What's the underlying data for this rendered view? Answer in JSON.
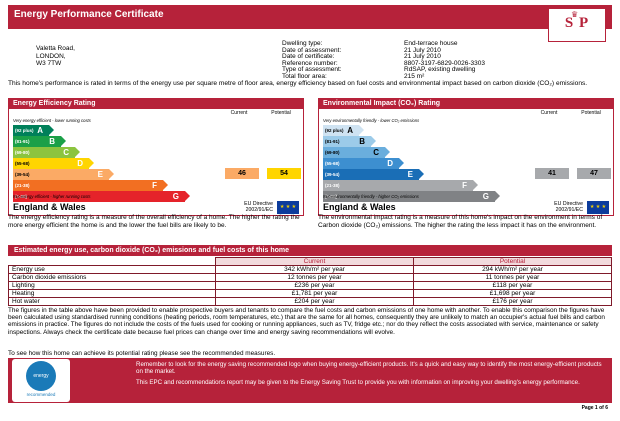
{
  "header": {
    "title": "Energy Performance Certificate",
    "logo_text": "S P"
  },
  "address": {
    "line1": "Valetta Road,",
    "line2": "LONDON,",
    "line3": "W3 7TW"
  },
  "details": [
    {
      "label": "Dwelling type:",
      "value": "End-terrace house"
    },
    {
      "label": "Date of assessment:",
      "value": "21 July 2010"
    },
    {
      "label": "Date of certificate:",
      "value": "21 July 2010"
    },
    {
      "label": "Reference number:",
      "value": "8807-3197-6829-0026-3303"
    },
    {
      "label": "Type of assessment:",
      "value": "RdSAP, existing dwelling"
    },
    {
      "label": "Total floor area:",
      "value": "215 m²"
    }
  ],
  "summary": "This home's performance is rated in terms of the energy use per square metre of floor area, energy efficiency based on fuel costs and environmental impact based on carbon dioxide (CO₂) emissions.",
  "efficiency": {
    "title": "Energy Efficiency Rating",
    "col_current": "Current",
    "col_potential": "Potential",
    "top_caption": "Very energy efficient - lower running costs",
    "bottom_caption": "Not energy efficient - higher running costs",
    "current": "46",
    "potential": "54",
    "region": "England & Wales",
    "eu_directive": "EU Directive\n2002/91/EC",
    "description": "The energy efficiency rating is a measure of the overall efficiency of a home. The higher the rating the more energy efficient the home is and the lower the fuel bills are likely to be."
  },
  "environmental": {
    "title": "Environmental Impact (CO₂) Rating",
    "col_current": "Current",
    "col_potential": "Potential",
    "top_caption": "Very environmentally friendly - lower CO₂ emissions",
    "bottom_caption": "Not environmentally friendly - higher CO₂ emissions",
    "current": "41",
    "potential": "47",
    "region": "England & Wales",
    "eu_directive": "EU Directive\n2002/91/EC",
    "description": "The environmental impact rating is a measure of this home's impact on the environment in terms of Carbon dioxide (CO₂) emissions. The higher the rating the less impact it has on the environment."
  },
  "bands": [
    {
      "letter": "A",
      "range": "(92 plus)",
      "eff_color": "#00805a",
      "env_color": "#cfe3f2"
    },
    {
      "letter": "B",
      "range": "(81-91)",
      "eff_color": "#1ba048",
      "env_color": "#9ccbe9"
    },
    {
      "letter": "C",
      "range": "(69-80)",
      "eff_color": "#8cc43f",
      "env_color": "#6aaedd"
    },
    {
      "letter": "D",
      "range": "(55-68)",
      "eff_color": "#ffd500",
      "env_color": "#3d8fd0"
    },
    {
      "letter": "E",
      "range": "(39-54)",
      "eff_color": "#fbaa65",
      "env_color": "#1a6eb6"
    },
    {
      "letter": "F",
      "range": "(21-38)",
      "eff_color": "#f26f22",
      "env_color": "#a7a9ac"
    },
    {
      "letter": "G",
      "range": "(1-20)",
      "eff_color": "#e5232a",
      "env_color": "#808285"
    }
  ],
  "costs": {
    "title": "Estimated energy use, carbon dioxide (CO₂) emissions and fuel costs of this home",
    "col_current": "Current",
    "col_potential": "Potential",
    "rows": [
      {
        "label": "Energy use",
        "current": "342 kWh/m² per year",
        "potential": "294 kWh/m² per year"
      },
      {
        "label": "Carbon dioxide emissions",
        "current": "12 tonnes per year",
        "potential": "11 tonnes per year"
      },
      {
        "label": "Lighting",
        "current": "£236 per year",
        "potential": "£118 per year"
      },
      {
        "label": "Heating",
        "current": "£1,781 per year",
        "potential": "£1,698 per year"
      },
      {
        "label": "Hot water",
        "current": "£204 per year",
        "potential": "£176 per year"
      }
    ]
  },
  "body_paragraph": "The figures in the table above have been provided to enable prospective buyers and tenants to compare the fuel costs and carbon emissions of one home with another. To enable this comparison the figures have been calculated using standardised running conditions (heating periods, room temperatures, etc.) that are the same for all homes, consequently they are unlikely to match an occupier's actual fuel bills and carbon emissions in practice. The figures do not include the costs of the fuels used for cooking or running appliances, such as TV, fridge etc.; nor do they reflect the costs associated with service, maintenance or safety inspections. Always check the certificate date because fuel prices can change over time and energy saving recommendations will evolve.",
  "see_how": "To see how this home can achieve its potential rating please see the recommended measures.",
  "footer": {
    "est_badge": "energy saving",
    "est_label": "recommended",
    "line1": "Remember to look for the energy saving recommended logo when buying energy-efficient products. It's a quick and easy way to identify the most energy-efficient products on the market.",
    "line2": "This EPC and recommendations report may be given to the Energy Saving Trust to provide you with information on improving your dwelling's energy performance.",
    "page": "Page 1 of 6"
  },
  "eu_flag": "★ ★ ★"
}
